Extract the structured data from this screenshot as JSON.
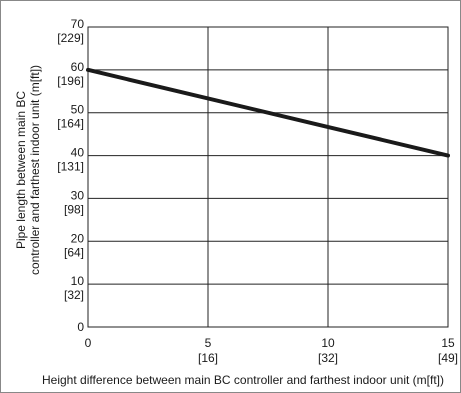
{
  "chart_data": {
    "type": "line",
    "title": "",
    "xlabel": "Height difference between main BC controller and farthest indoor unit (m[ft])",
    "ylabel_lines": [
      "Pipe length between main BC",
      "controller and farthest indoor unit (m[ft])"
    ],
    "xlim": [
      0,
      15
    ],
    "ylim": [
      0,
      70
    ],
    "grid": true,
    "x_ticks": [
      {
        "value": 0,
        "label": "0",
        "sublabel": ""
      },
      {
        "value": 5,
        "label": "5",
        "sublabel": "[16]"
      },
      {
        "value": 10,
        "label": "10",
        "sublabel": "[32]"
      },
      {
        "value": 15,
        "label": "15",
        "sublabel": "[49]"
      }
    ],
    "y_ticks": [
      {
        "value": 0,
        "label": "0",
        "sublabel": ""
      },
      {
        "value": 10,
        "label": "10",
        "sublabel": "[32]"
      },
      {
        "value": 20,
        "label": "20",
        "sublabel": "[64]"
      },
      {
        "value": 30,
        "label": "30",
        "sublabel": "[98]"
      },
      {
        "value": 40,
        "label": "40",
        "sublabel": "[131]"
      },
      {
        "value": 50,
        "label": "50",
        "sublabel": "[164]"
      },
      {
        "value": 60,
        "label": "60",
        "sublabel": "[196]"
      },
      {
        "value": 70,
        "label": "70",
        "sublabel": "[229]"
      }
    ],
    "series": [
      {
        "x": [
          0,
          15
        ],
        "y": [
          60,
          40
        ],
        "color": "#1a1a1a"
      }
    ]
  }
}
